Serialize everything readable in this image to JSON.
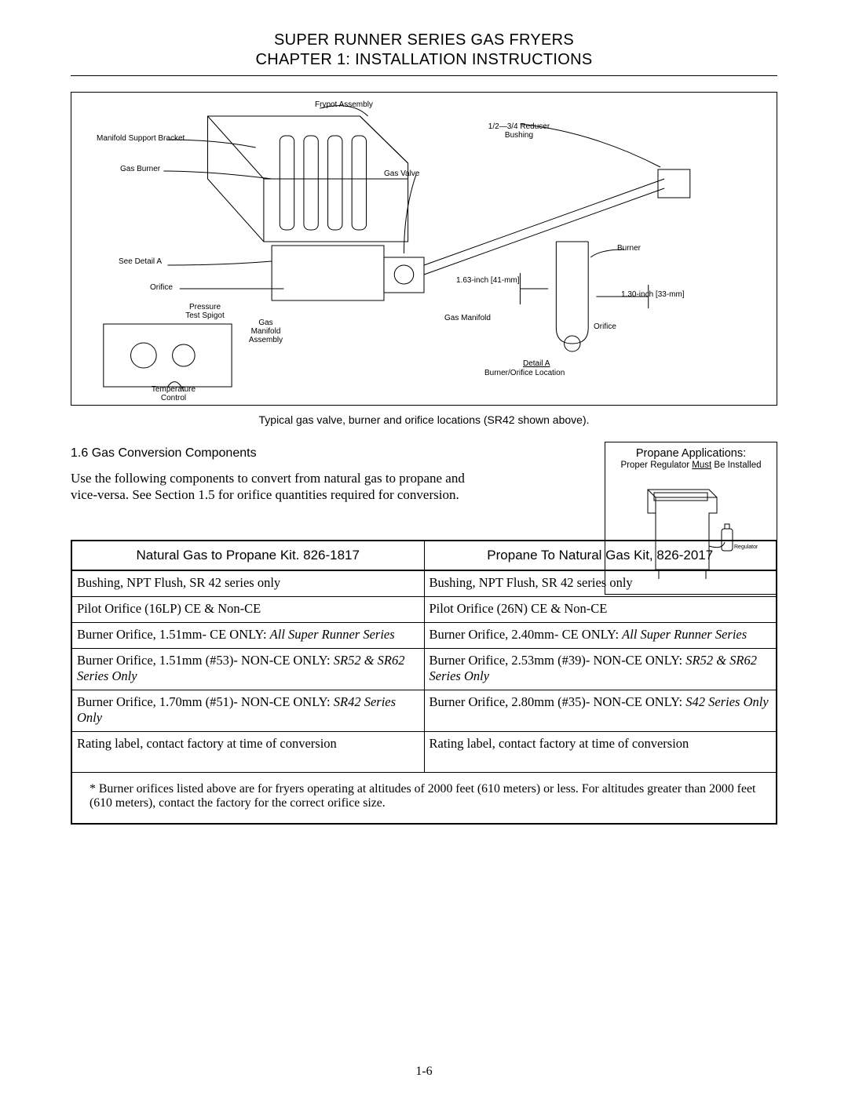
{
  "header": {
    "line1": "SUPER RUNNER SERIES GAS FRYERS",
    "line2": "CHAPTER 1:  INSTALLATION INSTRUCTIONS"
  },
  "diagram": {
    "caption": "Typical gas valve, burner and orifice locations (SR42 shown above).",
    "labels": {
      "frypot": "Frypot Assembly",
      "manifold_bracket": "Manifold Support Bracket",
      "gas_burner": "Gas Burner",
      "see_detail": "See Detail A",
      "orifice_left": "Orifice",
      "pressure_spigot": "Pressure Test Spigot",
      "gas_manifold_assy": "Gas Manifold Assembly",
      "temp_control": "Temperature Control",
      "gas_valve": "Gas Valve",
      "reducer": "1/2—3/4 Reducer Bushing",
      "burner_right": "Burner",
      "dim1": "1.63-inch [41-mm]",
      "dim2": "1.30-inch [33-mm]",
      "gas_manifold": "Gas Manifold",
      "orifice_right": "Orifice",
      "detail_a": "Detail A",
      "detail_sub": "Burner/Orifice Location"
    }
  },
  "section": {
    "heading": "1.6  Gas Conversion Components",
    "body": "Use the following components to convert from natural gas to propane and vice-versa.  See Section 1.5 for orifice quantities required for conversion."
  },
  "propane_box": {
    "title": "Propane Applications:",
    "sub_prefix": "Proper Regulator ",
    "sub_must": "Must",
    "sub_suffix": " Be Installed",
    "regulator_label": "Regulator"
  },
  "kit_table": {
    "headers": {
      "left": "Natural Gas to Propane Kit. 826-1817",
      "right": "Propane To Natural Gas Kit, 826-2017"
    },
    "rows": [
      {
        "left": {
          "plain": "Bushing, NPT Flush, SR 42 series only"
        },
        "right": {
          "plain": "Bushing, NPT Flush, SR 42 series only"
        }
      },
      {
        "left": {
          "plain": "Pilot Orifice (16LP) CE & Non-CE"
        },
        "right": {
          "plain": "Pilot Orifice (26N) CE & Non-CE"
        }
      },
      {
        "left": {
          "plain": "Burner Orifice, 1.51mm- CE ONLY: ",
          "italic": "All Super Runner Series"
        },
        "right": {
          "plain": "Burner Orifice, 2.40mm- CE ONLY: ",
          "italic": "All Super Runner Series"
        }
      },
      {
        "left": {
          "plain": "Burner Orifice, 1.51mm  (#53)- NON-CE ONLY: ",
          "italic": "SR52 & SR62 Series Only"
        },
        "right": {
          "plain": "Burner Orifice, 2.53mm  (#39)- NON-CE ONLY: ",
          "italic": "SR52 & SR62 Series Only"
        }
      },
      {
        "left": {
          "plain": "Burner Orifice, 1.70mm  (#51)- NON-CE ONLY: ",
          "italic": "SR42 Series Only"
        },
        "right": {
          "plain": "Burner Orifice, 2.80mm  (#35)- NON-CE ONLY: ",
          "italic": "S42 Series Only"
        }
      },
      {
        "left": {
          "plain": "Rating label, contact factory at time of conversion"
        },
        "right": {
          "plain": "Rating label, contact factory at time of conversion"
        },
        "tall": true
      }
    ],
    "footnote": "* Burner orifices listed above are for fryers operating at altitudes of 2000 feet (610 meters) or less.  For altitudes greater than 2000 feet (610 meters), contact the factory for the correct orifice size."
  },
  "page_number": "1-6"
}
